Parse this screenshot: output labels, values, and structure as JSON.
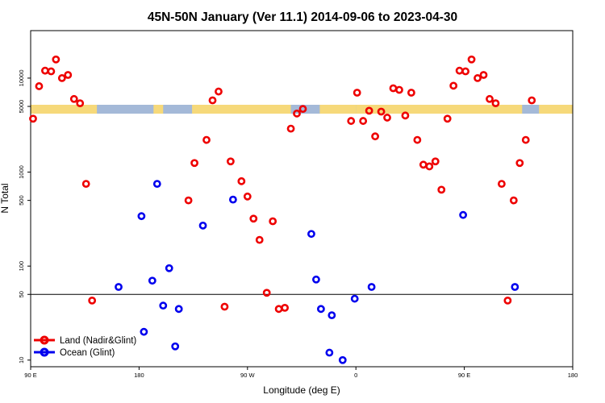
{
  "chart_data": {
    "type": "scatter",
    "title": "45N-50N January (Ver 11.1)   2014-09-06 to 2023-04-30",
    "xlabel": "Longitude (deg E)",
    "ylabel": "N Total",
    "x_axis": {
      "unwrapped_range": [
        90,
        450
      ],
      "ticks": [
        {
          "value": 90,
          "label": "90 E"
        },
        {
          "value": 180,
          "label": "180"
        },
        {
          "value": 270,
          "label": "90 W"
        },
        {
          "value": 360,
          "label": "0"
        },
        {
          "value": 450,
          "label": "90 E"
        },
        {
          "value": 540,
          "label": "180"
        }
      ],
      "range": [
        90,
        540
      ]
    },
    "y_axis": {
      "scale": "log",
      "range": [
        8.5,
        32000
      ],
      "ticks": [
        {
          "value": 10,
          "label": "10"
        },
        {
          "value": 50,
          "label": "50"
        },
        {
          "value": 100,
          "label": "100"
        },
        {
          "value": 500,
          "label": "500"
        },
        {
          "value": 1000,
          "label": "1000"
        },
        {
          "value": 5000,
          "label": "5000"
        },
        {
          "value": 10000,
          "label": "10000"
        }
      ]
    },
    "reference_line": 50,
    "grid": false,
    "legend_placement": "bottom-left",
    "series": [
      {
        "name": "Land (Nadir&Glint)",
        "color": "#ee0000",
        "x": [
          92,
          97,
          102,
          107,
          111,
          116,
          121,
          126,
          131,
          136,
          141,
          221,
          226,
          236,
          241,
          246,
          251,
          256,
          265,
          270,
          275,
          280,
          286,
          291,
          296,
          301,
          306,
          311,
          316,
          356,
          361,
          366,
          371,
          376,
          381,
          386,
          391,
          396,
          401,
          406,
          411,
          416,
          421,
          426,
          431,
          436,
          441,
          446,
          451,
          456,
          461,
          466,
          471,
          476,
          481,
          486,
          491,
          496,
          501,
          506
        ],
        "y": [
          3700,
          8200,
          12000,
          11800,
          15800,
          10000,
          10800,
          6000,
          5400,
          750,
          43,
          500,
          1250,
          2200,
          5800,
          7200,
          37,
          1300,
          800,
          550,
          320,
          190,
          52,
          300,
          35,
          36,
          2900,
          4200,
          4700,
          3500,
          7000,
          3500,
          4500,
          2400,
          4400,
          3800,
          7800,
          7500,
          4000,
          7000,
          2200,
          1200,
          1150,
          1300,
          650,
          3700,
          8300,
          12000,
          11800,
          15800,
          10000,
          10800,
          6000,
          5400,
          750,
          43,
          500,
          1250,
          2200,
          5800
        ],
        "points": "land"
      },
      {
        "name": "Ocean (Glint)",
        "color": "#0000ee",
        "x": [
          163,
          182,
          184,
          191,
          195,
          200,
          205,
          210,
          213,
          233,
          258,
          323,
          327,
          331,
          338,
          340,
          349,
          359,
          373,
          449,
          492
        ],
        "y": [
          60,
          340,
          20,
          70,
          750,
          38,
          95,
          14,
          35,
          270,
          510,
          220,
          72,
          35,
          12,
          30,
          10,
          45,
          60,
          350,
          60
        ],
        "points": "ocean"
      }
    ]
  },
  "legend": [
    {
      "label": "Land (Nadir&Glint)",
      "color": "#ee0000"
    },
    {
      "label": "Ocean (Glint)",
      "color": "#0000ee"
    }
  ],
  "map_strip": {
    "band_color": "#a4b9d8",
    "land_color": "#f6d97a",
    "land_spans_lon": [
      [
        90,
        145
      ],
      [
        192,
        200
      ],
      [
        224,
        306
      ],
      [
        330,
        360
      ],
      [
        360,
        498
      ],
      [
        512,
        540
      ]
    ]
  }
}
